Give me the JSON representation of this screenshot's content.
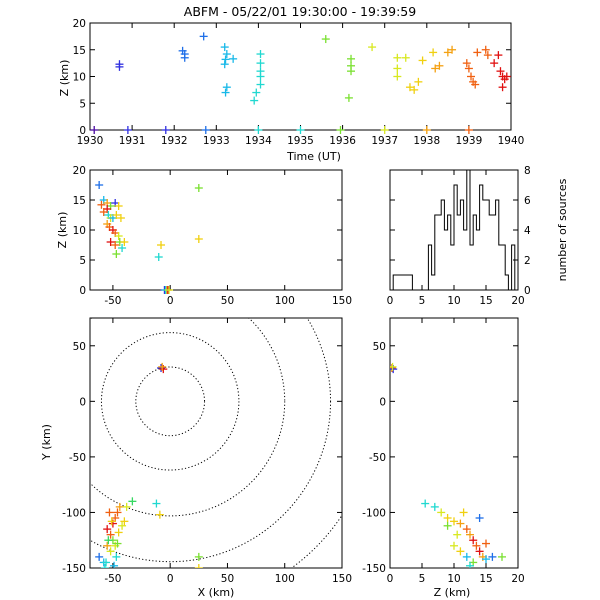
{
  "figure_title": "ABFM - 05/22/01 19:30:00 - 19:39:59",
  "colors": {
    "axis": "#000000",
    "scale": [
      "#4b0aa0",
      "#3030e0",
      "#1f6fe8",
      "#17b8e8",
      "#20d8d0",
      "#35d860",
      "#7ae030",
      "#d8e820",
      "#f0d010",
      "#f4a010",
      "#f06010",
      "#e01010"
    ]
  },
  "chart_data": [
    {
      "id": "time_height",
      "type": "scatter",
      "xlabel": "Time (UT)",
      "ylabel": "Z (km)",
      "xlim": [
        1930,
        1940
      ],
      "ylim": [
        0,
        20
      ],
      "xticks": [
        "1930",
        "1931",
        "1932",
        "1933",
        "1934",
        "1935",
        "1936",
        "1937",
        "1938",
        "1939",
        "1940"
      ],
      "yticks": [
        "0",
        "5",
        "10",
        "15",
        "20"
      ],
      "points": [
        [
          1930.1,
          0,
          0.0
        ],
        [
          1930.7,
          12.3,
          0.05
        ],
        [
          1930.7,
          11.8,
          0.05
        ],
        [
          1930.9,
          0,
          0.05
        ],
        [
          1931.8,
          0,
          0.1
        ],
        [
          1932.2,
          14.8,
          0.15
        ],
        [
          1932.25,
          13.5,
          0.15
        ],
        [
          1932.25,
          14.2,
          0.15
        ],
        [
          1932.7,
          17.5,
          0.2
        ],
        [
          1932.75,
          0,
          0.15
        ],
        [
          1933.2,
          15.5,
          0.3
        ],
        [
          1933.25,
          14.2,
          0.3
        ],
        [
          1933.22,
          13.2,
          0.3
        ],
        [
          1933.2,
          12.3,
          0.3
        ],
        [
          1933.25,
          8.0,
          0.3
        ],
        [
          1933.22,
          7.0,
          0.3
        ],
        [
          1933.4,
          13.3,
          0.3
        ],
        [
          1933.9,
          5.5,
          0.35
        ],
        [
          1933.95,
          7.0,
          0.35
        ],
        [
          1934.05,
          14.2,
          0.35
        ],
        [
          1934.05,
          12.5,
          0.35
        ],
        [
          1934.05,
          11.0,
          0.35
        ],
        [
          1934.05,
          10.0,
          0.35
        ],
        [
          1934.05,
          8.5,
          0.35
        ],
        [
          1934.0,
          0,
          0.35
        ],
        [
          1935.0,
          0,
          0.4
        ],
        [
          1935.6,
          17.0,
          0.5
        ],
        [
          1935.95,
          0,
          0.5
        ],
        [
          1936.2,
          13.3,
          0.55
        ],
        [
          1936.2,
          12.0,
          0.55
        ],
        [
          1936.2,
          11.0,
          0.55
        ],
        [
          1936.15,
          6.0,
          0.55
        ],
        [
          1936.7,
          15.5,
          0.6
        ],
        [
          1937.0,
          0,
          0.6
        ],
        [
          1937.3,
          13.5,
          0.65
        ],
        [
          1937.3,
          11.5,
          0.65
        ],
        [
          1937.3,
          10.0,
          0.65
        ],
        [
          1937.5,
          13.5,
          0.65
        ],
        [
          1937.6,
          8.0,
          0.7
        ],
        [
          1937.7,
          7.5,
          0.7
        ],
        [
          1937.8,
          9.0,
          0.7
        ],
        [
          1937.9,
          13.0,
          0.7
        ],
        [
          1938.0,
          0,
          0.8
        ],
        [
          1938.15,
          14.5,
          0.75
        ],
        [
          1938.2,
          11.5,
          0.8
        ],
        [
          1938.3,
          12.0,
          0.8
        ],
        [
          1938.5,
          14.5,
          0.8
        ],
        [
          1938.6,
          15.0,
          0.8
        ],
        [
          1938.95,
          12.5,
          0.9
        ],
        [
          1939.0,
          11.5,
          0.9
        ],
        [
          1939.05,
          10.0,
          0.9
        ],
        [
          1939.1,
          9.0,
          0.9
        ],
        [
          1939.15,
          8.5,
          0.9
        ],
        [
          1939.2,
          14.5,
          0.9
        ],
        [
          1939.0,
          0,
          0.9
        ],
        [
          1939.4,
          15.0,
          0.95
        ],
        [
          1939.45,
          14.0,
          0.95
        ],
        [
          1939.6,
          12.5,
          1.0
        ],
        [
          1939.7,
          14.0,
          1.0
        ],
        [
          1939.75,
          11.0,
          1.0
        ],
        [
          1939.8,
          10.0,
          1.0
        ],
        [
          1939.85,
          9.5,
          1.0
        ],
        [
          1939.9,
          10.0,
          1.0
        ],
        [
          1939.8,
          8.0,
          1.0
        ]
      ]
    },
    {
      "id": "x_z",
      "type": "scatter",
      "ylabel": "Z (km)",
      "xlim": [
        -70,
        150
      ],
      "ylim": [
        0,
        20
      ],
      "xticks": [
        "-50",
        "0",
        "50",
        "100",
        "150"
      ],
      "yticks": [
        "0",
        "5",
        "10",
        "15",
        "20"
      ],
      "points": [
        [
          -62,
          17.5,
          0.2
        ],
        [
          -58,
          15.0,
          0.3
        ],
        [
          -55,
          14.5,
          0.8
        ],
        [
          -60,
          14.2,
          0.9
        ],
        [
          -52,
          14.0,
          0.55
        ],
        [
          -48,
          14.5,
          0.05
        ],
        [
          -45,
          14.0,
          0.7
        ],
        [
          -55,
          13.5,
          1.0
        ],
        [
          -58,
          13.0,
          0.9
        ],
        [
          -54,
          12.5,
          0.35
        ],
        [
          -52,
          12.0,
          0.65
        ],
        [
          -50,
          12.0,
          0.3
        ],
        [
          -47,
          12.5,
          0.75
        ],
        [
          -43,
          12.0,
          0.7
        ],
        [
          -55,
          11.0,
          0.8
        ],
        [
          -53,
          10.5,
          0.9
        ],
        [
          -50,
          10.0,
          1.0
        ],
        [
          -48,
          9.5,
          0.95
        ],
        [
          -45,
          9.0,
          0.65
        ],
        [
          -52,
          8.0,
          1.0
        ],
        [
          -48,
          7.5,
          0.9
        ],
        [
          -44,
          8.0,
          0.5
        ],
        [
          -42,
          7.0,
          0.35
        ],
        [
          -40,
          8.0,
          0.7
        ],
        [
          -47,
          6.0,
          0.55
        ],
        [
          -10,
          5.5,
          0.35
        ],
        [
          -8,
          7.5,
          0.7
        ],
        [
          25,
          17.0,
          0.5
        ],
        [
          25,
          8.5,
          0.7
        ],
        [
          -5,
          0,
          0.05
        ],
        [
          -3,
          0,
          0.8
        ],
        [
          -2,
          0,
          1.0
        ],
        [
          -4,
          0,
          0.35
        ],
        [
          -1,
          0,
          0.6
        ]
      ]
    },
    {
      "id": "height_histogram",
      "type": "histogram",
      "ylabel": "number of sources",
      "xlim": [
        0,
        20
      ],
      "ylim": [
        0,
        8
      ],
      "xticks": [
        "0",
        "5",
        "10",
        "15",
        "20"
      ],
      "yticks": [
        "0",
        "2",
        "4",
        "6",
        "8"
      ],
      "bin_width": 0.5,
      "counts": [
        0,
        1,
        1,
        1,
        1,
        1,
        1,
        0,
        0,
        0,
        0,
        0,
        3,
        1,
        5,
        5,
        6,
        4,
        5,
        3,
        7,
        5,
        6,
        4,
        8,
        3,
        5,
        4,
        7,
        6,
        6,
        5,
        5,
        6,
        3,
        3,
        1,
        0,
        3,
        0
      ]
    },
    {
      "id": "plan_view",
      "type": "scatter",
      "xlabel": "X (km)",
      "ylabel": "Y (km)",
      "xlim": [
        -70,
        150
      ],
      "ylim": [
        -150,
        75
      ],
      "xticks": [
        "-50",
        "0",
        "50",
        "100",
        "150"
      ],
      "yticks": [
        "-150",
        "-100",
        "-50",
        "0",
        "50"
      ],
      "range_rings_km": [
        30,
        60,
        100,
        140,
        180
      ],
      "points": [
        [
          -8,
          30,
          0.05
        ],
        [
          -6,
          29,
          1.0
        ],
        [
          -7,
          31,
          0.8
        ],
        [
          -62,
          -140,
          0.2
        ],
        [
          -58,
          -145,
          0.3
        ],
        [
          -55,
          -130,
          0.8
        ],
        [
          -52,
          -120,
          0.9
        ],
        [
          -50,
          -110,
          1.0
        ],
        [
          -48,
          -105,
          0.95
        ],
        [
          -46,
          -100,
          0.9
        ],
        [
          -44,
          -95,
          0.8
        ],
        [
          -50,
          -125,
          0.55
        ],
        [
          -48,
          -130,
          0.65
        ],
        [
          -45,
          -118,
          0.7
        ],
        [
          -42,
          -112,
          0.65
        ],
        [
          -40,
          -108,
          0.75
        ],
        [
          -55,
          -115,
          1.0
        ],
        [
          -53,
          -100,
          0.9
        ],
        [
          -52,
          -135,
          0.6
        ],
        [
          -57,
          -150,
          0.35
        ],
        [
          -56,
          -145,
          0.4
        ],
        [
          -49,
          -148,
          0.3
        ],
        [
          -47,
          -140,
          0.35
        ],
        [
          -51,
          -108,
          0.7
        ],
        [
          -38,
          -95,
          0.6
        ],
        [
          -33,
          -90,
          0.45
        ],
        [
          -12,
          -92,
          0.35
        ],
        [
          -9,
          -102,
          0.7
        ],
        [
          25,
          -140,
          0.55
        ],
        [
          25,
          -150,
          0.7
        ],
        [
          -54,
          -125,
          0.45
        ],
        [
          -46,
          -128,
          0.5
        ]
      ]
    },
    {
      "id": "z_y",
      "type": "scatter",
      "xlabel": "Z (km)",
      "xlim": [
        0,
        20
      ],
      "ylim": [
        -150,
        75
      ],
      "xticks": [
        "0",
        "5",
        "10",
        "15",
        "20"
      ],
      "points": [
        [
          0.3,
          30,
          0.9
        ],
        [
          0.5,
          29,
          0.1
        ],
        [
          0.4,
          31,
          0.6
        ],
        [
          5.5,
          -92,
          0.35
        ],
        [
          7,
          -95,
          0.4
        ],
        [
          8,
          -100,
          0.65
        ],
        [
          9,
          -105,
          0.7
        ],
        [
          10,
          -108,
          0.75
        ],
        [
          11,
          -110,
          0.8
        ],
        [
          12,
          -115,
          0.9
        ],
        [
          12.5,
          -120,
          0.8
        ],
        [
          13,
          -125,
          1.0
        ],
        [
          13.5,
          -130,
          0.9
        ],
        [
          14,
          -135,
          1.0
        ],
        [
          14.5,
          -140,
          0.8
        ],
        [
          15,
          -142,
          0.3
        ],
        [
          16,
          -140,
          0.2
        ],
        [
          17.5,
          -140,
          0.5
        ],
        [
          10,
          -130,
          0.65
        ],
        [
          11,
          -135,
          0.7
        ],
        [
          12,
          -140,
          0.3
        ],
        [
          13,
          -145,
          0.5
        ],
        [
          11.5,
          -100,
          0.75
        ],
        [
          9,
          -112,
          0.55
        ],
        [
          14,
          -105,
          0.2
        ],
        [
          12.5,
          -148,
          0.35
        ],
        [
          10.5,
          -120,
          0.6
        ],
        [
          15,
          -128,
          0.95
        ]
      ]
    }
  ]
}
